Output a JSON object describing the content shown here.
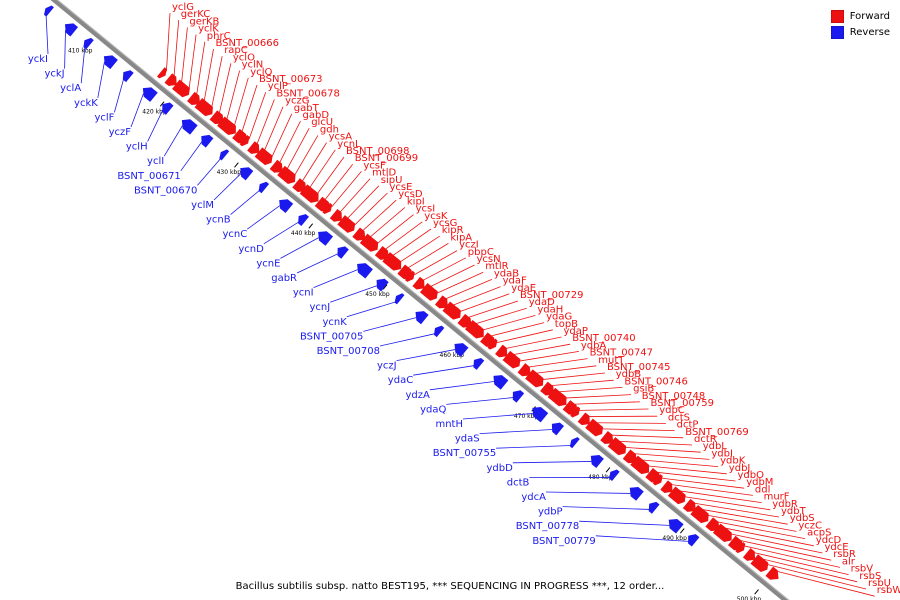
{
  "colors": {
    "forward": "#ee1111",
    "reverse": "#1a1aee",
    "backbone": "#888888"
  },
  "legend": [
    {
      "label": "Forward",
      "color": "#ee1111"
    },
    {
      "label": "Reverse",
      "color": "#1a1aee"
    }
  ],
  "caption": "Bacillus subtilis subsp. natto BEST195, *** SEQUENCING IN PROGRESS ***, 12 order...",
  "ticks": [
    "410 kbp",
    "420 kbp",
    "430 kbp",
    "440 kbp",
    "450 kbp",
    "460 kbp",
    "470 kbp",
    "480 kbp",
    "490 kbp",
    "500 kbp"
  ],
  "forward_genes": [
    "yclG",
    "gerKC",
    "gerKB",
    "yclK",
    "phrC",
    "BSNT_00666",
    "rapC",
    "yclO",
    "yclN",
    "yclQ",
    "BSNT_00673",
    "yclP",
    "BSNT_00678",
    "yczG",
    "gabT",
    "gabD",
    "glcU",
    "gdh",
    "ycsA",
    "ycnL",
    "BSNT_00698",
    "BSNT_00699",
    "ycsF",
    "mtlD",
    "sipU",
    "ycsE",
    "ycsD",
    "kipI",
    "ycsI",
    "ycsK",
    "ycsG",
    "kipR",
    "kipA",
    "yczI",
    "pbpC",
    "ycsN",
    "mtlR",
    "ydaB",
    "ydaF",
    "ydaE",
    "BSNT_00729",
    "ydaD",
    "ydaH",
    "ydaG",
    "topB",
    "ydaP",
    "BSNT_00740",
    "ydbA",
    "BSNT_00747",
    "mutT",
    "BSNT_00745",
    "ydbB",
    "BSNT_00746",
    "gsiB",
    "BSNT_00748",
    "BSNT_00759",
    "ydbC",
    "dctS",
    "dctP",
    "BSNT_00769",
    "dctR",
    "ydbL",
    "ydbI",
    "ydbK",
    "ydbJ",
    "ydbO",
    "ydbM",
    "ddl",
    "murF",
    "ydbR",
    "ydbT",
    "ydbS",
    "yczC",
    "acpS",
    "ydcD",
    "ydcE",
    "rsbR",
    "alr",
    "rsbV",
    "rsbS",
    "rsbU",
    "rsbW"
  ],
  "reverse_genes": [
    "yckI",
    "yckJ",
    "yclA",
    "yckK",
    "yclF",
    "yczF",
    "yclH",
    "yclI",
    "BSNT_00671",
    "BSNT_00670",
    "yclM",
    "ycnB",
    "ycnC",
    "ycnD",
    "ycnE",
    "gabR",
    "ycnI",
    "ycnJ",
    "ycnK",
    "BSNT_00705",
    "BSNT_00708",
    "yczJ",
    "ydaC",
    "ydzA",
    "ydaQ",
    "mntH",
    "ydaS",
    "BSNT_00755",
    "ydbD",
    "dctB",
    "ydcA",
    "ydbP",
    "BSNT_00778",
    "BSNT_00779"
  ]
}
